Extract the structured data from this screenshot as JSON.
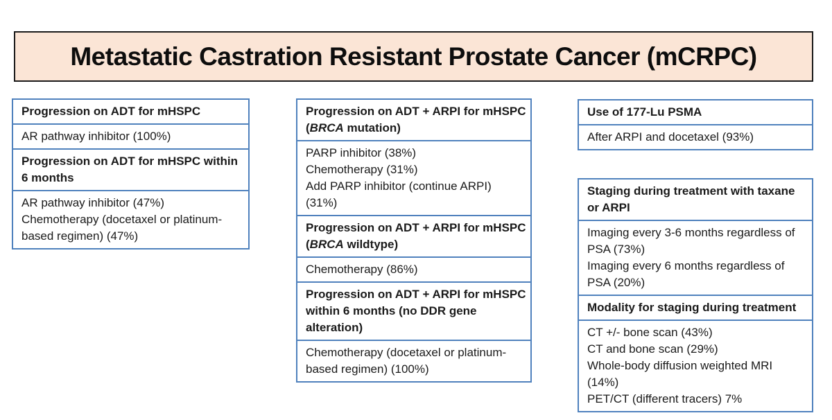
{
  "title": "Metastatic Castration Resistant Prostate Cancer (mCRPC)",
  "colors": {
    "box_border": "#4f81bd",
    "title_bg": "#fbe5d6",
    "title_border": "#1a1a1a",
    "text": "#1a1a1a"
  },
  "boxes": {
    "left": {
      "h1": [
        "Progression on ADT for mHSPC"
      ],
      "b1": [
        "AR pathway inhibitor (100%)"
      ],
      "h2": [
        "Progression on ADT for mHSPC within",
        "6 months"
      ],
      "b2": [
        "AR pathway inhibitor (47%)",
        "Chemotherapy (docetaxel or platinum-",
        "based regimen) (47%)"
      ]
    },
    "middle": {
      "h1_line1": "Progression on ADT + ARPI for mHSPC",
      "h1_line2": {
        "pre": "(",
        "gene": "BRCA",
        "post": " mutation)"
      },
      "b1": [
        "PARP inhibitor (38%)",
        "Chemotherapy (31%)",
        "Add PARP inhibitor (continue ARPI)",
        "(31%)"
      ],
      "h2_line1": "Progression on ADT + ARPI for mHSPC",
      "h2_line2": {
        "pre": "(",
        "gene": "BRCA",
        "post": " wildtype)"
      },
      "b2": [
        "Chemotherapy (86%)"
      ],
      "h3": [
        "Progression on ADT + ARPI for mHSPC",
        "within 6 months (no DDR gene",
        "alteration)"
      ],
      "b3": [
        "Chemotherapy (docetaxel or platinum-",
        "based regimen) (100%)"
      ]
    },
    "right": {
      "h1": [
        "Use of 177-Lu PSMA"
      ],
      "b1": [
        "After ARPI and docetaxel (93%)"
      ],
      "h2": [
        "Staging during treatment with taxane",
        "or ARPI"
      ],
      "b2": [
        "Imaging every 3-6 months regardless of",
        "PSA (73%)",
        "Imaging every 6 months regardless of",
        "PSA (20%)"
      ],
      "h3": [
        "Modality for staging during treatment"
      ],
      "b3": [
        "CT +/- bone scan (43%)",
        "CT and bone scan (29%)",
        "Whole-body diffusion weighted MRI",
        "(14%)",
        "PET/CT (different tracers) 7%"
      ]
    }
  }
}
